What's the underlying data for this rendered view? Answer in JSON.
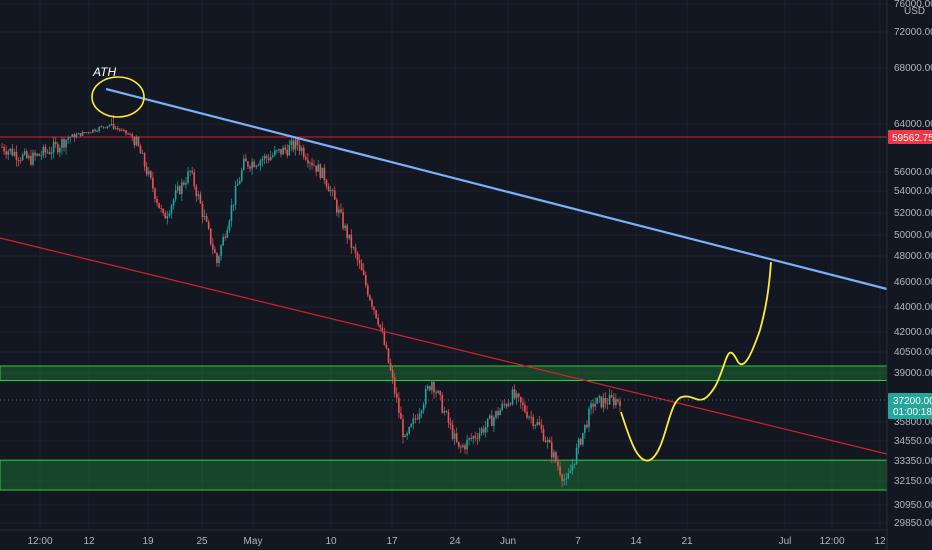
{
  "chart_data": {
    "type": "candlestick",
    "currency": "USD",
    "y_axis_labels": [
      "76000.00",
      "72000.00",
      "68000.00",
      "64000.00",
      "59562.75",
      "56000.00",
      "54000.00",
      "52000.00",
      "50000.00",
      "48000.00",
      "46000.00",
      "44000.00",
      "42000.00",
      "40500.00",
      "39000.00",
      "37200.00",
      "35800.00",
      "34550.00",
      "33350.00",
      "32150.00",
      "30950.00",
      "29850.00"
    ],
    "price_ticks": [
      76000,
      72000,
      68000,
      64000,
      56000,
      54000,
      52000,
      50000,
      48000,
      46000,
      44000,
      42000,
      40500,
      39000,
      35800,
      34550,
      33350,
      32150,
      30950,
      29850
    ],
    "x_labels": [
      "12:00",
      "12",
      "19",
      "25",
      "May",
      "10",
      "17",
      "24",
      "Jun",
      "7",
      "14",
      "21",
      "Jul",
      "12:00",
      "12"
    ],
    "last_price": "37200.00",
    "countdown": "01:00:18",
    "ath_price": "59562.75",
    "annotation_ath": "ATH",
    "colors": {
      "background": "#131722",
      "up": "#26a69a",
      "down": "#ef5350",
      "trend_blue": "#7ab0f5",
      "trend_red": "#d6202a",
      "hline_red": "#d6202a",
      "zone_green": "#1f9a3a",
      "projection_yellow": "#ffeb3b",
      "last_price_tag": "#26a69a",
      "ath_tag": "#f23645"
    },
    "support_zones": [
      {
        "label": "upper",
        "from": 38500,
        "to": 39500
      },
      {
        "label": "lower",
        "from": 31700,
        "to": 33400
      }
    ],
    "path_ohlc_pivots": [
      [
        58500,
        58600
      ],
      [
        57000,
        57500
      ],
      [
        59000,
        58000
      ],
      [
        61500,
        60000
      ],
      [
        63000,
        64500
      ],
      [
        60000,
        58000
      ],
      [
        53000,
        50000
      ],
      [
        55000,
        57000
      ],
      [
        48000,
        47000
      ],
      [
        56000,
        57500
      ],
      [
        57000,
        58200
      ],
      [
        59000,
        58700
      ],
      [
        56000,
        55000
      ],
      [
        50000,
        48000
      ],
      [
        44000,
        42000
      ],
      [
        36000,
        33000
      ],
      [
        38000,
        39000
      ],
      [
        35000,
        33000
      ],
      [
        36000,
        35000
      ],
      [
        37000,
        38000
      ],
      [
        36000,
        35000
      ],
      [
        33000,
        31000
      ],
      [
        36000,
        38000
      ],
      [
        37000,
        37500
      ]
    ]
  }
}
